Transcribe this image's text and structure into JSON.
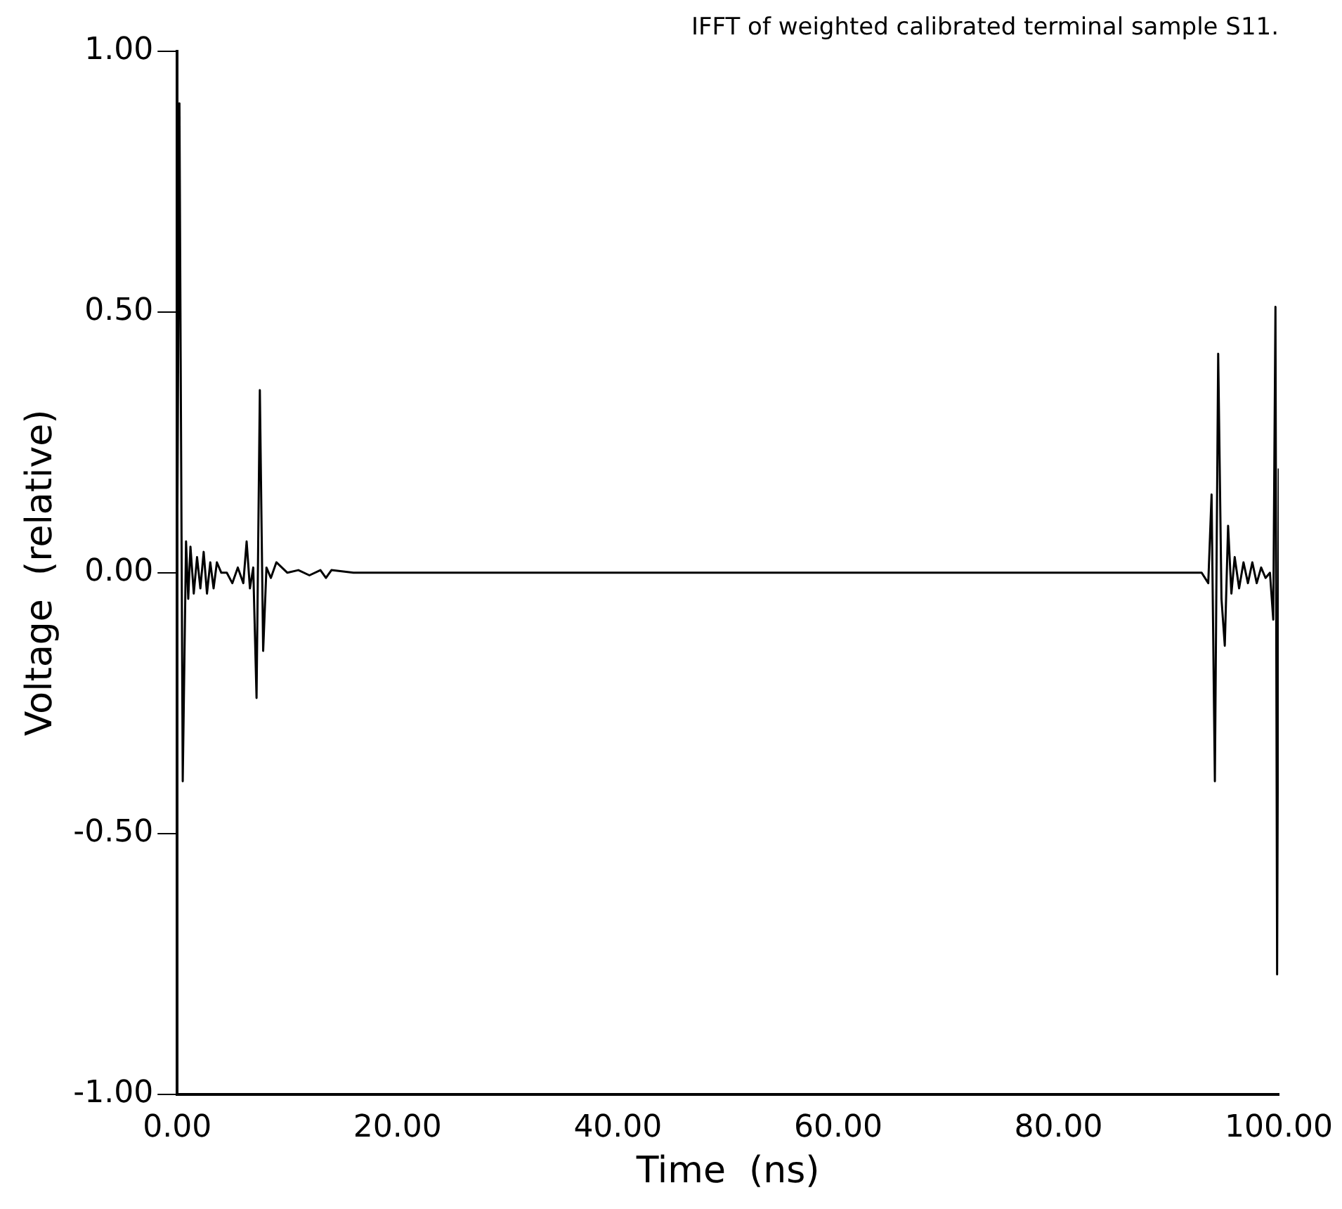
{
  "chart_data": {
    "type": "line",
    "title": "IFFT of weighted calibrated terminal sample S11.",
    "xlabel": "Time  (ns)",
    "ylabel": "Voltage  (relative)",
    "xlim": [
      0,
      100
    ],
    "ylim": [
      -1,
      1
    ],
    "xticks": [
      {
        "value": 0,
        "label": "0.00"
      },
      {
        "value": 20,
        "label": "20.00"
      },
      {
        "value": 40,
        "label": "40.00"
      },
      {
        "value": 60,
        "label": "60.00"
      },
      {
        "value": 80,
        "label": "80.00"
      },
      {
        "value": 100,
        "label": "100.00"
      }
    ],
    "yticks": [
      {
        "value": -1,
        "label": "-1.00"
      },
      {
        "value": -0.5,
        "label": "-0.50"
      },
      {
        "value": 0,
        "label": "0.00"
      },
      {
        "value": 0.5,
        "label": "0.50"
      },
      {
        "value": 1,
        "label": "1.00"
      }
    ],
    "grid": false,
    "legend": false,
    "marker": "none",
    "line_style": "solid",
    "series": [
      {
        "color": "#000000",
        "x": [
          0,
          0.2,
          0.5,
          0.8,
          1.0,
          1.2,
          1.5,
          1.8,
          2.1,
          2.4,
          2.7,
          3.0,
          3.3,
          3.6,
          4.0,
          4.5,
          5.0,
          5.5,
          6.0,
          6.3,
          6.6,
          6.9,
          7.2,
          7.5,
          7.8,
          8.1,
          8.5,
          9,
          10,
          11,
          12,
          13,
          13.5,
          14,
          16,
          20,
          30,
          40,
          50,
          60,
          70,
          80,
          90,
          92,
          93,
          93.6,
          93.9,
          94.2,
          94.5,
          94.8,
          95.1,
          95.4,
          95.7,
          96.0,
          96.4,
          96.8,
          97.2,
          97.6,
          98.0,
          98.4,
          98.8,
          99.2,
          99.5,
          99.7,
          99.85,
          100
        ],
        "values": [
          0.05,
          0.9,
          -0.4,
          0.06,
          -0.05,
          0.05,
          -0.04,
          0.03,
          -0.03,
          0.04,
          -0.04,
          0.02,
          -0.03,
          0.02,
          0,
          0,
          -0.02,
          0.01,
          -0.02,
          0.06,
          -0.03,
          0.01,
          -0.24,
          0.35,
          -0.15,
          0.01,
          -0.01,
          0.02,
          0,
          0.005,
          -0.005,
          0.005,
          -0.01,
          0.005,
          0,
          0,
          0,
          0,
          0,
          0,
          0,
          0,
          0,
          0,
          0,
          -0.02,
          0.15,
          -0.4,
          0.42,
          -0.05,
          -0.14,
          0.09,
          -0.04,
          0.03,
          -0.03,
          0.02,
          -0.02,
          0.02,
          -0.02,
          0.01,
          -0.01,
          0,
          -0.09,
          0.51,
          -0.77,
          0.2
        ]
      }
    ]
  }
}
